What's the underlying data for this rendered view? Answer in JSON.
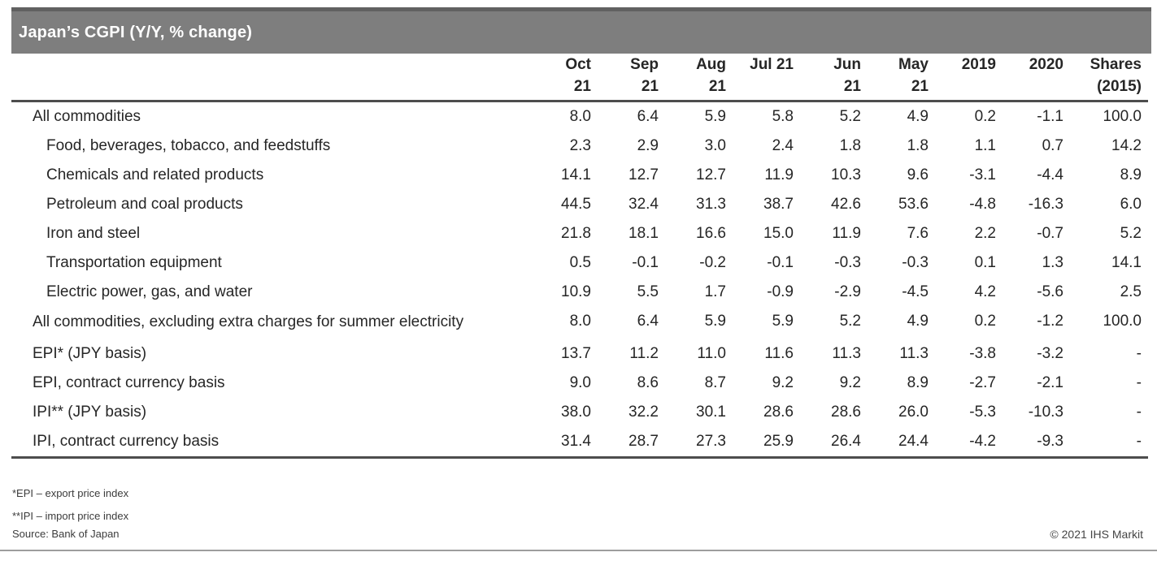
{
  "title": "Japan’s CGPI (Y/Y, % change)",
  "chart_data": {
    "type": "table",
    "title": "Japan’s CGPI (Y/Y, % change)",
    "columns": [
      {
        "id": "oct-21",
        "line1": "Oct",
        "line2": "21"
      },
      {
        "id": "sep-21",
        "line1": "Sep",
        "line2": "21"
      },
      {
        "id": "aug-21",
        "line1": "Aug",
        "line2": "21"
      },
      {
        "id": "jul-21",
        "line1": "Jul 21",
        "line2": ""
      },
      {
        "id": "jun-21",
        "line1": "Jun",
        "line2": "21"
      },
      {
        "id": "may-21",
        "line1": "May",
        "line2": "21"
      },
      {
        "id": "2019",
        "line1": "2019",
        "line2": ""
      },
      {
        "id": "2020",
        "line1": "2020",
        "line2": ""
      },
      {
        "id": "shares-2015",
        "line1": "Shares",
        "line2": "(2015)"
      }
    ],
    "rows": [
      {
        "label": "All commodities",
        "indent": 0,
        "two_line": false,
        "values": [
          "8.0",
          "6.4",
          "5.9",
          "5.8",
          "5.2",
          "4.9",
          "0.2",
          "-1.1",
          "100.0"
        ]
      },
      {
        "label": "Food, beverages, tobacco, and feedstuffs",
        "indent": 1,
        "two_line": false,
        "values": [
          "2.3",
          "2.9",
          "3.0",
          "2.4",
          "1.8",
          "1.8",
          "1.1",
          "0.7",
          "14.2"
        ]
      },
      {
        "label": "Chemicals and related products",
        "indent": 1,
        "two_line": false,
        "values": [
          "14.1",
          "12.7",
          "12.7",
          "11.9",
          "10.3",
          "9.6",
          "-3.1",
          "-4.4",
          "8.9"
        ]
      },
      {
        "label": "Petroleum and coal products",
        "indent": 1,
        "two_line": false,
        "values": [
          "44.5",
          "32.4",
          "31.3",
          "38.7",
          "42.6",
          "53.6",
          "-4.8",
          "-16.3",
          "6.0"
        ]
      },
      {
        "label": "Iron and steel",
        "indent": 1,
        "two_line": false,
        "values": [
          "21.8",
          "18.1",
          "16.6",
          "15.0",
          "11.9",
          "7.6",
          "2.2",
          "-0.7",
          "5.2"
        ]
      },
      {
        "label": "Transportation equipment",
        "indent": 1,
        "two_line": false,
        "values": [
          "0.5",
          "-0.1",
          "-0.2",
          "-0.1",
          "-0.3",
          "-0.3",
          "0.1",
          "1.3",
          "14.1"
        ]
      },
      {
        "label": "Electric power, gas, and water",
        "indent": 1,
        "two_line": false,
        "values": [
          "10.9",
          "5.5",
          "1.7",
          "-0.9",
          "-2.9",
          "-4.5",
          "4.2",
          "-5.6",
          "2.5"
        ]
      },
      {
        "label": "All commodities, excluding extra charges for summer electricity",
        "indent": 0,
        "two_line": true,
        "values": [
          "8.0",
          "6.4",
          "5.9",
          "5.9",
          "5.2",
          "4.9",
          "0.2",
          "-1.2",
          "100.0"
        ]
      },
      {
        "label": "EPI* (JPY basis)",
        "indent": 0,
        "two_line": false,
        "values": [
          "13.7",
          "11.2",
          "11.0",
          "11.6",
          "11.3",
          "11.3",
          "-3.8",
          "-3.2",
          "-"
        ]
      },
      {
        "label": "EPI, contract currency basis",
        "indent": 0,
        "two_line": false,
        "values": [
          "9.0",
          "8.6",
          "8.7",
          "9.2",
          "9.2",
          "8.9",
          "-2.7",
          "-2.1",
          "-"
        ]
      },
      {
        "label": "IPI** (JPY basis)",
        "indent": 0,
        "two_line": false,
        "values": [
          "38.0",
          "32.2",
          "30.1",
          "28.6",
          "28.6",
          "26.0",
          "-5.3",
          "-10.3",
          "-"
        ]
      },
      {
        "label": "IPI, contract currency basis",
        "indent": 0,
        "two_line": false,
        "values": [
          "31.4",
          "28.7",
          "27.3",
          "25.9",
          "26.4",
          "24.4",
          "-4.2",
          "-9.3",
          "-"
        ]
      }
    ],
    "layout_hints": {
      "numbers_aligned": "right",
      "gridlines": "none",
      "rules": [
        "below-header",
        "below-last-row"
      ]
    }
  },
  "footnotes": [
    "*EPI – export price index",
    "**IPI – import price index",
    "Source: Bank of Japan"
  ],
  "copyright": "© 2021 IHS Markit",
  "colors": {
    "c-bar": "#7e7e7e",
    "c-bar-top": "#616161",
    "c-text": "#262626",
    "c-rule": "#4d4d4d",
    "c-rule-light": "#9d9d9d",
    "c-foot": "#3c3c3c",
    "c-copy": "#454545"
  }
}
